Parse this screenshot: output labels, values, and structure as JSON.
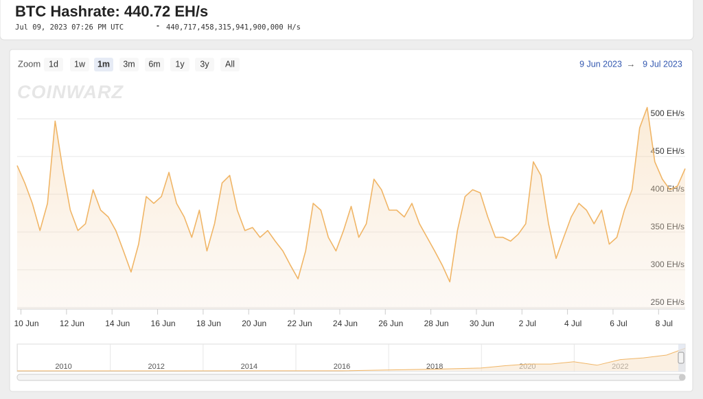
{
  "header": {
    "title": "BTC Hashrate: 440.72 EH/s",
    "timestamp": "Jul 09, 2023 07:26 PM UTC",
    "separator": "-",
    "hashes": "440,717,458,315,941,900,000 H/s"
  },
  "ui": {
    "zoom_label": "Zoom",
    "zoom_buttons": [
      "1d",
      "1w",
      "1m",
      "3m",
      "6m",
      "1y",
      "3y",
      "All"
    ],
    "zoom_selected": "1m",
    "range_from": "9 Jun 2023",
    "range_arrow": "→",
    "range_to": "9 Jul 2023",
    "watermark": "COINWARZ"
  },
  "chart_data": {
    "type": "line",
    "color": "#f0b566",
    "x": [
      "2023-06-09T20:00",
      "2023-06-10T04:00",
      "2023-06-10T12:00",
      "2023-06-10T20:00",
      "2023-06-11T04:00",
      "2023-06-11T12:00",
      "2023-06-11T20:00",
      "2023-06-12T04:00",
      "2023-06-12T12:00",
      "2023-06-12T20:00",
      "2023-06-13T04:00",
      "2023-06-13T12:00",
      "2023-06-13T20:00",
      "2023-06-14T04:00",
      "2023-06-14T12:00",
      "2023-06-14T20:00",
      "2023-06-15T04:00",
      "2023-06-15T12:00",
      "2023-06-15T20:00",
      "2023-06-16T04:00",
      "2023-06-16T12:00",
      "2023-06-16T20:00",
      "2023-06-17T04:00",
      "2023-06-17T12:00",
      "2023-06-17T20:00",
      "2023-06-18T04:00",
      "2023-06-18T12:00",
      "2023-06-18T20:00",
      "2023-06-19T04:00",
      "2023-06-19T12:00",
      "2023-06-19T20:00",
      "2023-06-20T04:00",
      "2023-06-20T12:00",
      "2023-06-20T20:00",
      "2023-06-21T04:00",
      "2023-06-21T12:00",
      "2023-06-21T20:00",
      "2023-06-22T04:00",
      "2023-06-22T12:00",
      "2023-06-22T20:00",
      "2023-06-23T04:00",
      "2023-06-23T12:00",
      "2023-06-23T20:00",
      "2023-06-24T04:00",
      "2023-06-24T12:00",
      "2023-06-24T20:00",
      "2023-06-25T04:00",
      "2023-06-25T12:00",
      "2023-06-25T20:00",
      "2023-06-26T04:00",
      "2023-06-26T12:00",
      "2023-06-26T20:00",
      "2023-06-27T04:00",
      "2023-06-27T12:00",
      "2023-06-27T20:00",
      "2023-06-28T04:00",
      "2023-06-28T12:00",
      "2023-06-28T20:00",
      "2023-06-29T04:00",
      "2023-06-29T12:00",
      "2023-06-29T20:00",
      "2023-06-30T04:00",
      "2023-06-30T12:00",
      "2023-06-30T20:00",
      "2023-07-01T04:00",
      "2023-07-01T12:00",
      "2023-07-01T20:00",
      "2023-07-02T04:00",
      "2023-07-02T12:00",
      "2023-07-02T20:00",
      "2023-07-03T04:00",
      "2023-07-03T12:00",
      "2023-07-03T20:00",
      "2023-07-04T04:00",
      "2023-07-04T12:00",
      "2023-07-04T20:00",
      "2023-07-05T04:00",
      "2023-07-05T12:00",
      "2023-07-05T20:00",
      "2023-07-06T04:00",
      "2023-07-06T12:00",
      "2023-07-06T20:00",
      "2023-07-07T04:00",
      "2023-07-07T12:00",
      "2023-07-07T20:00",
      "2023-07-08T04:00",
      "2023-07-08T12:00",
      "2023-07-08T20:00",
      "2023-07-09T04:00"
    ],
    "values": [
      438,
      415,
      388,
      352,
      388,
      497,
      434,
      379,
      352,
      361,
      406,
      379,
      370,
      352,
      325,
      297,
      334,
      397,
      388,
      397,
      429,
      388,
      370,
      343,
      379,
      325,
      361,
      415,
      425,
      379,
      352,
      356,
      343,
      352,
      338,
      325,
      306,
      288,
      325,
      388,
      379,
      343,
      325,
      352,
      384,
      343,
      361,
      420,
      406,
      379,
      379,
      370,
      388,
      361,
      343,
      325,
      306,
      284,
      352,
      397,
      406,
      402,
      370,
      343,
      343,
      338,
      347,
      361,
      443,
      425,
      361,
      315,
      343,
      370,
      388,
      379,
      361,
      379,
      334,
      343,
      379,
      406,
      488,
      515,
      443,
      420,
      406,
      411,
      434
    ],
    "xlim": [
      "2023-06-09T20:00",
      "2023-07-09T04:00"
    ],
    "xticks": [
      {
        "value": "2023-06-10",
        "label": "10 Jun"
      },
      {
        "value": "2023-06-12",
        "label": "12 Jun"
      },
      {
        "value": "2023-06-14",
        "label": "14 Jun"
      },
      {
        "value": "2023-06-16",
        "label": "16 Jun"
      },
      {
        "value": "2023-06-18",
        "label": "18 Jun"
      },
      {
        "value": "2023-06-20",
        "label": "20 Jun"
      },
      {
        "value": "2023-06-22",
        "label": "22 Jun"
      },
      {
        "value": "2023-06-24",
        "label": "24 Jun"
      },
      {
        "value": "2023-06-26",
        "label": "26 Jun"
      },
      {
        "value": "2023-06-28",
        "label": "28 Jun"
      },
      {
        "value": "2023-06-30",
        "label": "30 Jun"
      },
      {
        "value": "2023-07-02",
        "label": "2 Jul"
      },
      {
        "value": "2023-07-04",
        "label": "4 Jul"
      },
      {
        "value": "2023-07-06",
        "label": "6 Jul"
      },
      {
        "value": "2023-07-08",
        "label": "8 Jul"
      }
    ],
    "ylim": [
      248,
      550
    ],
    "yticks": [
      {
        "value": 250,
        "label": "250 EH/s"
      },
      {
        "value": 300,
        "label": "300 EH/s"
      },
      {
        "value": 350,
        "label": "350 EH/s"
      },
      {
        "value": 400,
        "label": "400 EH/s"
      },
      {
        "value": 450,
        "label": "450 EH/s"
      },
      {
        "value": 500,
        "label": "500 EH/s"
      }
    ],
    "grid": true,
    "navigator": {
      "x": [
        2009,
        2016,
        2018,
        2019,
        2019.5,
        2020,
        2020.5,
        2021,
        2021.5,
        2022,
        2022.5,
        2023,
        2023.4
      ],
      "values": [
        0,
        1,
        30,
        50,
        90,
        120,
        120,
        160,
        100,
        200,
        230,
        280,
        400
      ],
      "xlim": [
        2009,
        2023.4
      ],
      "ylim": [
        0,
        450
      ],
      "xticks": [
        2010,
        2012,
        2014,
        2016,
        2018,
        2020,
        2022
      ]
    }
  }
}
